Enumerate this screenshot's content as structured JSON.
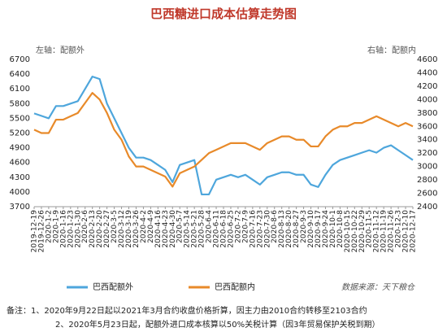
{
  "chart_data": {
    "type": "line",
    "title": "巴西糖进口成本估算走势图",
    "left_axis_label": "左轴：配额外",
    "right_axis_label": "右轴：配额内",
    "source": "数据来源：天下粮仓",
    "notes": [
      "备注：1、2020年9月22日起以2021年3月合约收盘价格折算，因主力由2010合约转移至2103合约",
      "2、2020年5月23日起，配额外进口成本核算以50%关税计算（因3年贸易保护关税到期）"
    ],
    "categories": [
      "2019-12-19",
      "2019-12-26",
      "2020-1-2",
      "2020-1-9",
      "2020-1-16",
      "2020-1-23",
      "2020-1-30",
      "2020-2-6",
      "2020-2-13",
      "2020-2-20",
      "2020-2-27",
      "2020-3-5",
      "2020-3-12",
      "2020-3-19",
      "2020-3-26",
      "2020-4-2",
      "2020-4-9",
      "2020-4-16",
      "2020-4-23",
      "2020-4-30",
      "2020-5-7",
      "2020-5-14",
      "2020-5-21",
      "2020-5-28",
      "2020-6-4",
      "2020-6-11",
      "2020-6-18",
      "2020-6-25",
      "2020-7-2",
      "2020-7-9",
      "2020-7-16",
      "2020-7-23",
      "2020-7-30",
      "2020-8-6",
      "2020-8-13",
      "2020-8-20",
      "2020-8-27",
      "2020-9-3",
      "2020-9-10",
      "2020-9-17",
      "2020-9-24",
      "2020-10-1",
      "2020-10-8",
      "2020-10-15",
      "2020-10-22",
      "2020-10-29",
      "2020-11-5",
      "2020-11-12",
      "2020-11-19",
      "2020-11-26",
      "2020-12-3",
      "2020-12-10",
      "2020-12-17"
    ],
    "series": [
      {
        "name": "巴西配额外",
        "color": "#4ea6dc",
        "axis": "y",
        "values": [
          5600,
          5550,
          5500,
          5750,
          5750,
          5800,
          5850,
          6100,
          6350,
          6300,
          5800,
          5500,
          5200,
          4900,
          4700,
          4700,
          4650,
          4550,
          4450,
          4200,
          4550,
          4600,
          4650,
          3950,
          3950,
          4250,
          4300,
          4350,
          4300,
          4350,
          4250,
          4150,
          4300,
          4350,
          4400,
          4400,
          4350,
          4350,
          4150,
          4100,
          4350,
          4550,
          4650,
          4700,
          4750,
          4800,
          4850,
          4800,
          4900,
          4950,
          4850,
          4750,
          4650
        ]
      },
      {
        "name": "巴西配额内",
        "color": "#e88a2a",
        "axis": "y2",
        "values": [
          3550,
          3500,
          3500,
          3700,
          3700,
          3750,
          3800,
          3950,
          4100,
          4000,
          3800,
          3550,
          3400,
          3150,
          3000,
          3000,
          2950,
          2900,
          2850,
          2700,
          2900,
          2950,
          3000,
          3100,
          3200,
          3250,
          3300,
          3350,
          3350,
          3350,
          3300,
          3250,
          3350,
          3400,
          3450,
          3450,
          3400,
          3400,
          3300,
          3300,
          3450,
          3550,
          3600,
          3600,
          3650,
          3650,
          3700,
          3750,
          3700,
          3650,
          3600,
          3650,
          3600
        ]
      }
    ],
    "ylim": [
      3700,
      6700
    ],
    "yticks": [
      3700,
      4000,
      4300,
      4600,
      4900,
      5200,
      5500,
      5800,
      6100,
      6400,
      6700
    ],
    "y2lim": [
      2400,
      4600
    ],
    "y2ticks": [
      2400,
      2600,
      2800,
      3000,
      3200,
      3400,
      3600,
      3800,
      4000,
      4200,
      4400,
      4600
    ],
    "grid": false
  }
}
